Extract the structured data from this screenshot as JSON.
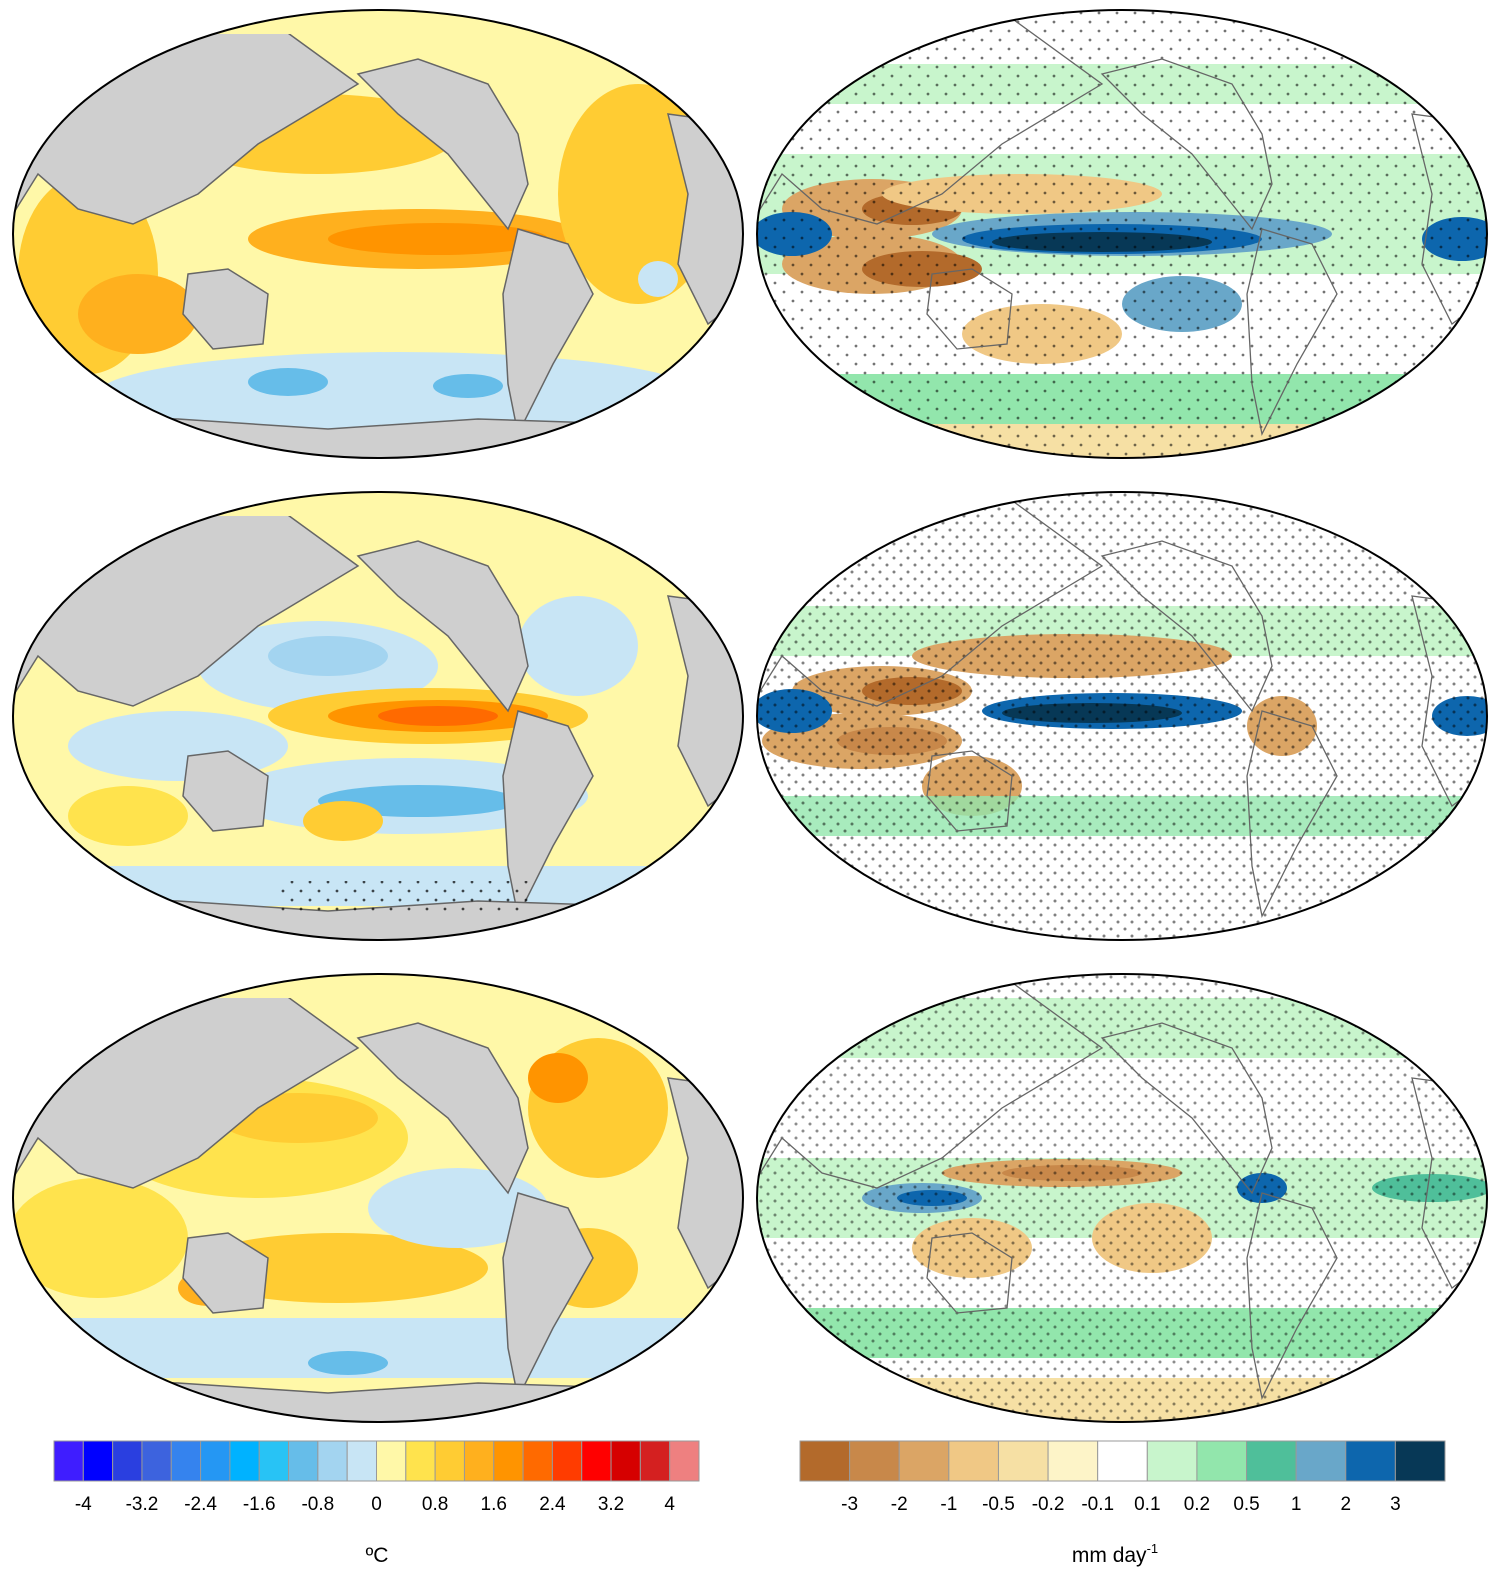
{
  "figure": {
    "columns": [
      {
        "variable": "sea-surface-temperature-anomaly",
        "land_color": "#cfcfcf"
      },
      {
        "variable": "precipitation-anomaly",
        "land_color": "#ffffff"
      }
    ],
    "stippling": "significance-dots"
  },
  "colorbars": {
    "temperature": {
      "colors": [
        "#3f1dff",
        "#0000ff",
        "#2a3fe0",
        "#3d63de",
        "#3583ee",
        "#2597f3",
        "#00b2ff",
        "#28c3f5",
        "#66bde9",
        "#a3d4f0",
        "#c8e5f5",
        "#fff8a8",
        "#ffe34d",
        "#ffcc33",
        "#ffb01e",
        "#ff9400",
        "#ff6a00",
        "#ff3c00",
        "#ff0000",
        "#d60000",
        "#d42020",
        "#ee8080"
      ],
      "labels": [
        "-4",
        "-3.2",
        "-2.4",
        "-1.6",
        "-0.8",
        "0",
        "0.8",
        "1.6",
        "2.4",
        "3.2",
        "4"
      ],
      "unit_main": "ºC"
    },
    "precipitation": {
      "colors": [
        "#b36a2b",
        "#c8884a",
        "#dba565",
        "#f0c885",
        "#f6e0a4",
        "#fdf4c8",
        "#ffffff",
        "#c8f5cc",
        "#92e6ac",
        "#4fbf9a",
        "#69a7c9",
        "#0d66ad",
        "#073856"
      ],
      "labels": [
        "-3",
        "-2",
        "-1",
        "-0.5",
        "-0.2",
        "-0.1",
        "0.1",
        "0.2",
        "0.5",
        "1",
        "2",
        "3"
      ],
      "unit_main": "mm day",
      "unit_sup": "-1"
    }
  }
}
